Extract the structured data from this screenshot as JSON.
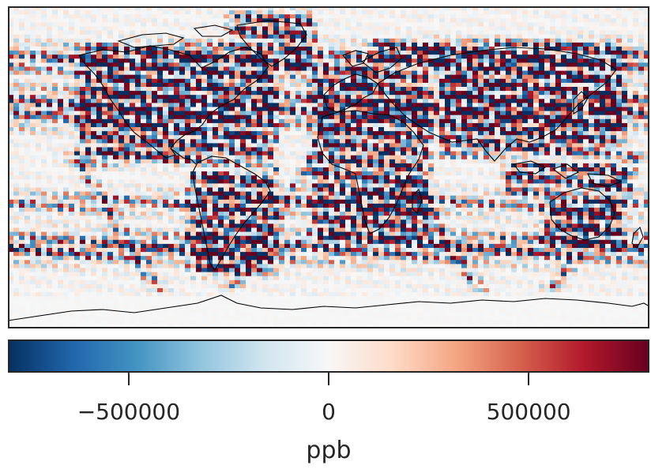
{
  "chart_data": [
    {
      "type": "heatmap",
      "title": "",
      "xlabel": "",
      "ylabel": "",
      "grid": false,
      "legend": "none",
      "projection": "plate carree world map",
      "coastlines": true,
      "xlim": [
        -180,
        180
      ],
      "ylim": [
        -90,
        90
      ],
      "value_range": [
        -800000,
        800000
      ],
      "colormap": "RdBu_r",
      "features": {
        "banding": "strong alternating positive and negative values along coastlines and in latitude bands near 35N and 45S; near-zero values over open ocean and polar regions"
      }
    },
    {
      "type": "colorbar",
      "orientation": "horizontal",
      "label": "ppb",
      "ticks": [
        -500000,
        0,
        500000
      ],
      "tick_labels": [
        "−500000",
        "0",
        "500000"
      ],
      "range": [
        -800000,
        800000
      ],
      "colors": [
        "#053061",
        "#2166ac",
        "#4393c3",
        "#92c5de",
        "#d1e5f0",
        "#f7f7f7",
        "#fddbc7",
        "#f4a582",
        "#d6604d",
        "#b2182b",
        "#67001f"
      ]
    }
  ]
}
